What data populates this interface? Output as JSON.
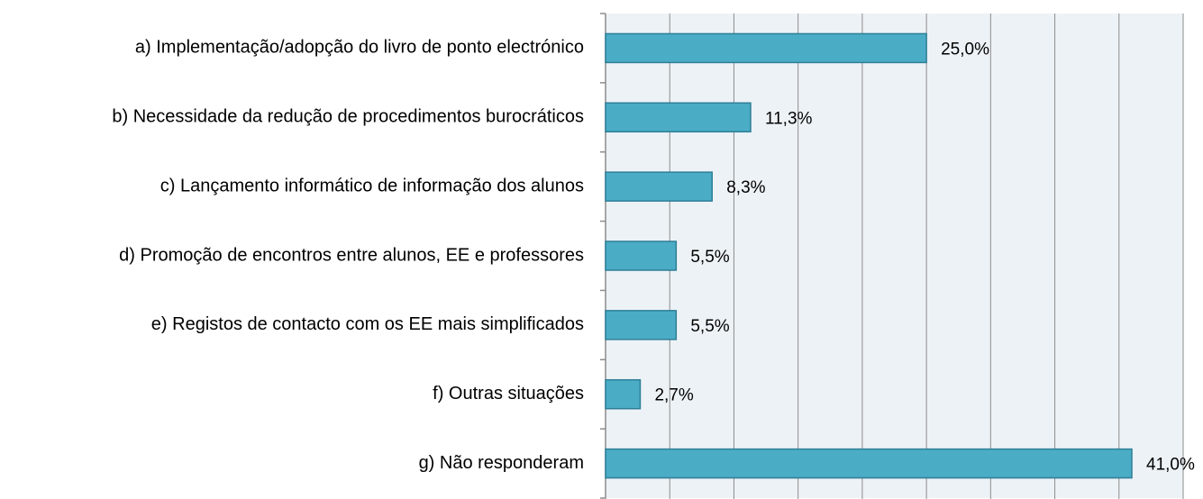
{
  "chart_data": {
    "type": "bar",
    "orientation": "horizontal",
    "categories": [
      "a) Implementação/adopção do livro de ponto electrónico",
      "b) Necessidade da redução de procedimentos burocráticos",
      "c) Lançamento informático de informação dos alunos",
      "d) Promoção de encontros entre alunos, EE e professores",
      "e) Registos de contacto com os EE mais simplificados",
      "f) Outras situações",
      "g) Não responderam"
    ],
    "values": [
      25.0,
      11.3,
      8.3,
      5.5,
      5.5,
      2.7,
      41.0
    ],
    "value_labels": [
      "25,0%",
      "11,3%",
      "8,3%",
      "5,5%",
      "5,5%",
      "2,7%",
      "41,0%"
    ],
    "color": "#4bacc6",
    "xlim": [
      0,
      45
    ],
    "xticks": [
      0,
      5,
      10,
      15,
      20,
      25,
      30,
      35,
      40,
      45
    ],
    "grid": true
  }
}
